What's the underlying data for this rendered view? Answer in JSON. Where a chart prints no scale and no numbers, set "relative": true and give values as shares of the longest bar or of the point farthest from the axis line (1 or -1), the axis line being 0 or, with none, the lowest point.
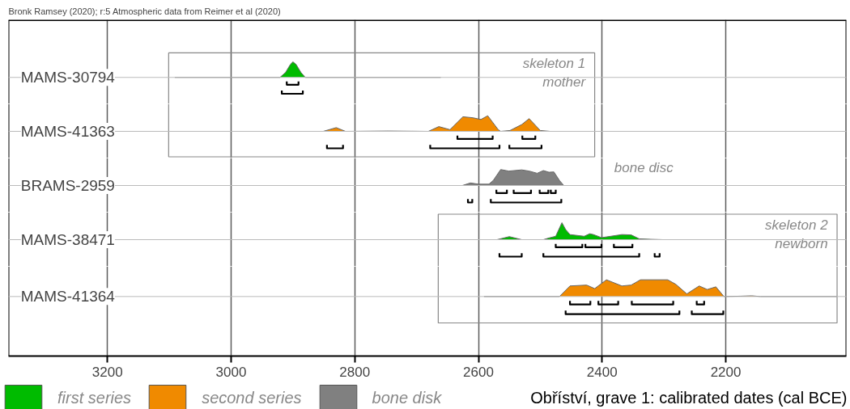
{
  "chart_data": [
    {
      "type": "area",
      "relative": true,
      "title": "Bronk Ramsey (2020); r:5 Atmospheric data from Reimer et al (2020)",
      "annotations": [
        "skeleton 1\nmother"
      ],
      "xlim": [
        3360,
        2005
      ],
      "xticks": [
        3200,
        3000,
        2800,
        2600,
        2400,
        2200
      ],
      "grid": "x",
      "tick_labels": false,
      "series": [
        {
          "name": "MAMS-30794",
          "color": "#00bb00",
          "x": [
            3091,
            2921,
            2912,
            2904,
            2900,
            2895,
            2887,
            2880,
            2661
          ],
          "values": [
            0,
            0,
            0.3,
            0.8,
            0.95,
            0.8,
            0.3,
            0,
            0
          ]
        },
        {
          "type": "line",
          "color": "#000000",
          "x": [
            2910,
            2910,
            2891,
            2891,
            null,
            2918,
            2918,
            2884,
            2884
          ],
          "values": [
            -0.25,
            -0.45,
            -0.45,
            -0.25,
            null,
            -0.8,
            -1,
            -1,
            -0.8
          ]
        }
      ]
    },
    {
      "type": "area",
      "relative": true,
      "xlim": [
        3360,
        2005
      ],
      "xticks": [
        3200,
        3000,
        2800,
        2600,
        2400,
        2200
      ],
      "grid": "x",
      "tick_labels": false,
      "series": [
        {
          "name": "MAMS-41363",
          "color": "#f08a00",
          "x": [
            2895,
            2851,
            2830,
            2815,
            2745,
            2681,
            2664,
            2646,
            2625,
            2609,
            2596,
            2585,
            2568,
            2564,
            2549,
            2530,
            2518,
            2500,
            2484,
            2457
          ],
          "values": [
            0,
            0,
            0.22,
            0,
            0.02,
            0,
            0.28,
            0.1,
            0.86,
            0.8,
            0.7,
            0.92,
            0.1,
            0,
            0.05,
            0.4,
            0.75,
            0.05,
            0,
            0
          ]
        },
        {
          "type": "line",
          "color": "#000000",
          "x": [
            2634,
            2634,
            2577,
            2577,
            null,
            2529,
            2529,
            2508,
            2508,
            null,
            2845,
            2845,
            2819,
            2819,
            null,
            2678,
            2678,
            2566,
            2566,
            null,
            2550,
            2550,
            2498,
            2498
          ],
          "values": [
            -0.25,
            -0.45,
            -0.45,
            -0.25,
            null,
            -0.25,
            -0.45,
            -0.45,
            -0.25,
            null,
            -0.8,
            -1,
            -1,
            -0.8,
            null,
            -0.8,
            -1,
            -1,
            -0.8,
            null,
            -0.8,
            -1,
            -1,
            -0.8
          ]
        }
      ]
    },
    {
      "type": "area",
      "relative": true,
      "annotations": [
        "bone disc"
      ],
      "xlim": [
        3360,
        2005
      ],
      "xticks": [
        3200,
        3000,
        2800,
        2600,
        2400,
        2200
      ],
      "grid": "x",
      "tick_labels": false,
      "series": [
        {
          "name": "BRAMS-2959",
          "color": "#808080",
          "x": [
            2880,
            2626,
            2613,
            2600,
            2583,
            2576,
            2564,
            2551,
            2530,
            2518,
            2505,
            2495,
            2486,
            2478,
            2469,
            2462,
            2285
          ],
          "values": [
            0,
            0,
            0.15,
            0.08,
            0.08,
            0.3,
            0.94,
            0.85,
            0.92,
            0.85,
            0.72,
            0.88,
            0.78,
            0.8,
            0.3,
            0,
            0
          ]
        },
        {
          "type": "line",
          "color": "#000000",
          "x": [
            2571,
            2571,
            2554,
            2554,
            null,
            2543,
            2543,
            2515,
            2515,
            null,
            2501,
            2501,
            2487,
            2487,
            null,
            2483,
            2483,
            2475,
            2475,
            null,
            2617,
            2617,
            2610,
            2610,
            null,
            2580,
            2580,
            2466,
            2466
          ],
          "values": [
            -0.25,
            -0.45,
            -0.45,
            -0.25,
            null,
            -0.25,
            -0.45,
            -0.45,
            -0.25,
            null,
            -0.25,
            -0.45,
            -0.45,
            -0.25,
            null,
            -0.25,
            -0.45,
            -0.45,
            -0.25,
            null,
            -0.8,
            -1,
            -1,
            -0.8,
            null,
            -0.8,
            -1,
            -1,
            -0.8
          ]
        }
      ]
    },
    {
      "type": "area",
      "relative": true,
      "annotations": [
        "skeleton 2\nnewborn"
      ],
      "xlim": [
        3360,
        2005
      ],
      "xticks": [
        3200,
        3000,
        2800,
        2600,
        2400,
        2200
      ],
      "grid": "x",
      "tick_labels": false,
      "series": [
        {
          "name": "MAMS-38471",
          "color": "#00bb00",
          "x": [
            2635,
            2570,
            2550,
            2530,
            2495,
            2486,
            2475,
            2465,
            2459,
            2452,
            2429,
            2420,
            2414,
            2401,
            2386,
            2368,
            2353,
            2340,
            2321,
            2302,
            2191
          ],
          "values": [
            0,
            0,
            0.18,
            0,
            0,
            0.1,
            0.2,
            1,
            0.6,
            0.3,
            0.2,
            0.35,
            0.3,
            0.12,
            0.2,
            0.3,
            0.28,
            0.05,
            0.02,
            0,
            0
          ]
        },
        {
          "type": "line",
          "color": "#000000",
          "x": [
            2475,
            2475,
            2432,
            2432,
            null,
            2427,
            2427,
            2401,
            2401,
            null,
            2381,
            2381,
            2351,
            2351,
            null,
            2566,
            2566,
            2530,
            2530,
            null,
            2495,
            2495,
            2340,
            2340,
            null,
            2315,
            2315,
            2307,
            2307
          ],
          "values": [
            -0.25,
            -0.45,
            -0.45,
            -0.25,
            null,
            -0.25,
            -0.45,
            -0.45,
            -0.25,
            null,
            -0.25,
            -0.45,
            -0.45,
            -0.25,
            null,
            -0.8,
            -1,
            -1,
            -0.8,
            null,
            -0.8,
            -1,
            -1,
            -0.8,
            null,
            -0.8,
            -1,
            -1,
            -0.8
          ]
        }
      ]
    },
    {
      "type": "area",
      "relative": true,
      "xlim": [
        3360,
        2005
      ],
      "xticks": [
        3200,
        3000,
        2800,
        2600,
        2400,
        2200
      ],
      "grid": "x",
      "tick_labels": "x",
      "series": [
        {
          "name": "MAMS-41364",
          "color": "#f08a00",
          "x": [
            2591,
            2469,
            2452,
            2425,
            2412,
            2393,
            2368,
            2353,
            2338,
            2294,
            2281,
            2263,
            2243,
            2230,
            2216,
            2203,
            2176,
            2158,
            2144,
            2020
          ],
          "values": [
            0,
            0,
            0.6,
            0.65,
            0.45,
            0.95,
            0.6,
            0.65,
            0.95,
            0.95,
            0.7,
            0.15,
            0.6,
            0.4,
            0.55,
            0,
            0.02,
            0.04,
            0,
            0
          ]
        },
        {
          "type": "line",
          "color": "#000000",
          "x": [
            2452,
            2452,
            2419,
            2419,
            null,
            2406,
            2406,
            2374,
            2374,
            null,
            2352,
            2352,
            2285,
            2285,
            null,
            2247,
            2247,
            2235,
            2235,
            null,
            2459,
            2459,
            2275,
            2275,
            null,
            2255,
            2255,
            2204,
            2204
          ],
          "values": [
            -0.25,
            -0.45,
            -0.45,
            -0.25,
            null,
            -0.25,
            -0.45,
            -0.45,
            -0.25,
            null,
            -0.25,
            -0.45,
            -0.45,
            -0.25,
            null,
            -0.25,
            -0.45,
            -0.45,
            -0.25,
            null,
            -0.8,
            -1,
            -1,
            -0.8,
            null,
            -0.8,
            -1,
            -1,
            -0.8
          ]
        }
      ]
    },
    {
      "type": "other",
      "title": "Obříství, grave 1: calibrated dates (cal BCE)",
      "legend": "bottom left",
      "series": [
        {
          "name": "first series",
          "color": "#00bb00"
        },
        {
          "name": "second series",
          "color": "#f08a00"
        },
        {
          "name": "bone disk",
          "color": "#808080"
        }
      ]
    }
  ]
}
